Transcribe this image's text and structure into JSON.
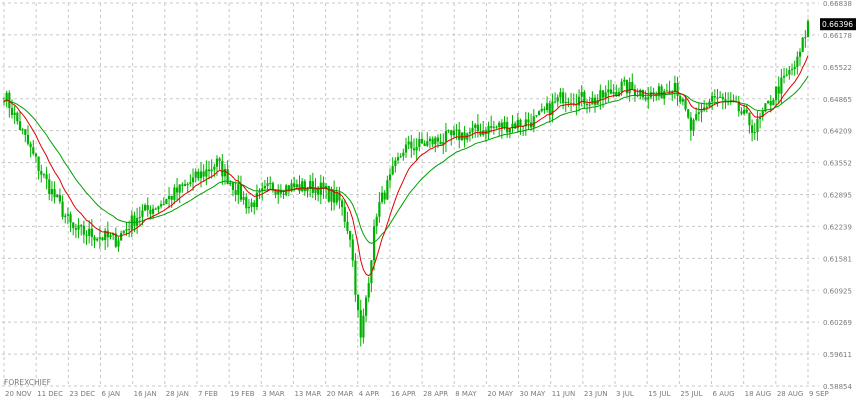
{
  "watermark": "FOREXCHIEF",
  "chart_data": {
    "type": "candlestick",
    "grid": true,
    "colors": {
      "bull": "#00b000",
      "bear": "#00b000",
      "ma_fast": "#e00000",
      "ma_slow": "#00a000",
      "grid": "#c8c8c8",
      "text": "#7a7a7a",
      "current_label_bg": "#000000",
      "current_label_fg": "#ffffff"
    },
    "ylim": [
      0.58854,
      0.66838
    ],
    "y_ticks": [
      "0.66838",
      "0.66178",
      "0.65522",
      "0.64865",
      "0.64209",
      "0.63552",
      "0.62895",
      "0.62239",
      "0.61581",
      "0.60925",
      "0.60269",
      "0.59611",
      "0.58854"
    ],
    "x_labels": [
      "20 NOV",
      "11 DEC",
      "23 DEC",
      "6 JAN",
      "16 JAN",
      "28 JAN",
      "7 FEB",
      "19 FEB",
      "3 MAR",
      "13 MAR",
      "20 MAR",
      "4 APR",
      "16 APR",
      "28 APR",
      "8 MAY",
      "20 MAY",
      "30 MAY",
      "11 JUN",
      "23 JUN",
      "3 JUL",
      "15 JUL",
      "25 JUL",
      "6 AUG",
      "18 AUG",
      "28 AUG",
      "9 SEP"
    ],
    "current_price": "0.66396",
    "anchors": [
      {
        "i": 0,
        "c": 0.6495
      },
      {
        "i": 14,
        "c": 0.633
      },
      {
        "i": 26,
        "c": 0.621
      },
      {
        "i": 42,
        "c": 0.619
      },
      {
        "i": 50,
        "c": 0.624
      },
      {
        "i": 60,
        "c": 0.627
      },
      {
        "i": 80,
        "c": 0.635
      },
      {
        "i": 92,
        "c": 0.626
      },
      {
        "i": 100,
        "c": 0.63
      },
      {
        "i": 118,
        "c": 0.63
      },
      {
        "i": 126,
        "c": 0.627
      },
      {
        "i": 130,
        "c": 0.62
      },
      {
        "i": 134,
        "c": 0.598
      },
      {
        "i": 140,
        "c": 0.625
      },
      {
        "i": 150,
        "c": 0.638
      },
      {
        "i": 165,
        "c": 0.64
      },
      {
        "i": 180,
        "c": 0.642
      },
      {
        "i": 200,
        "c": 0.644
      },
      {
        "i": 210,
        "c": 0.649
      },
      {
        "i": 222,
        "c": 0.648
      },
      {
        "i": 232,
        "c": 0.651
      },
      {
        "i": 245,
        "c": 0.649
      },
      {
        "i": 252,
        "c": 0.652
      },
      {
        "i": 258,
        "c": 0.642
      },
      {
        "i": 266,
        "c": 0.649
      },
      {
        "i": 276,
        "c": 0.646
      },
      {
        "i": 282,
        "c": 0.642
      },
      {
        "i": 290,
        "c": 0.65
      },
      {
        "i": 298,
        "c": 0.656
      },
      {
        "i": 302,
        "c": 0.664
      }
    ]
  }
}
